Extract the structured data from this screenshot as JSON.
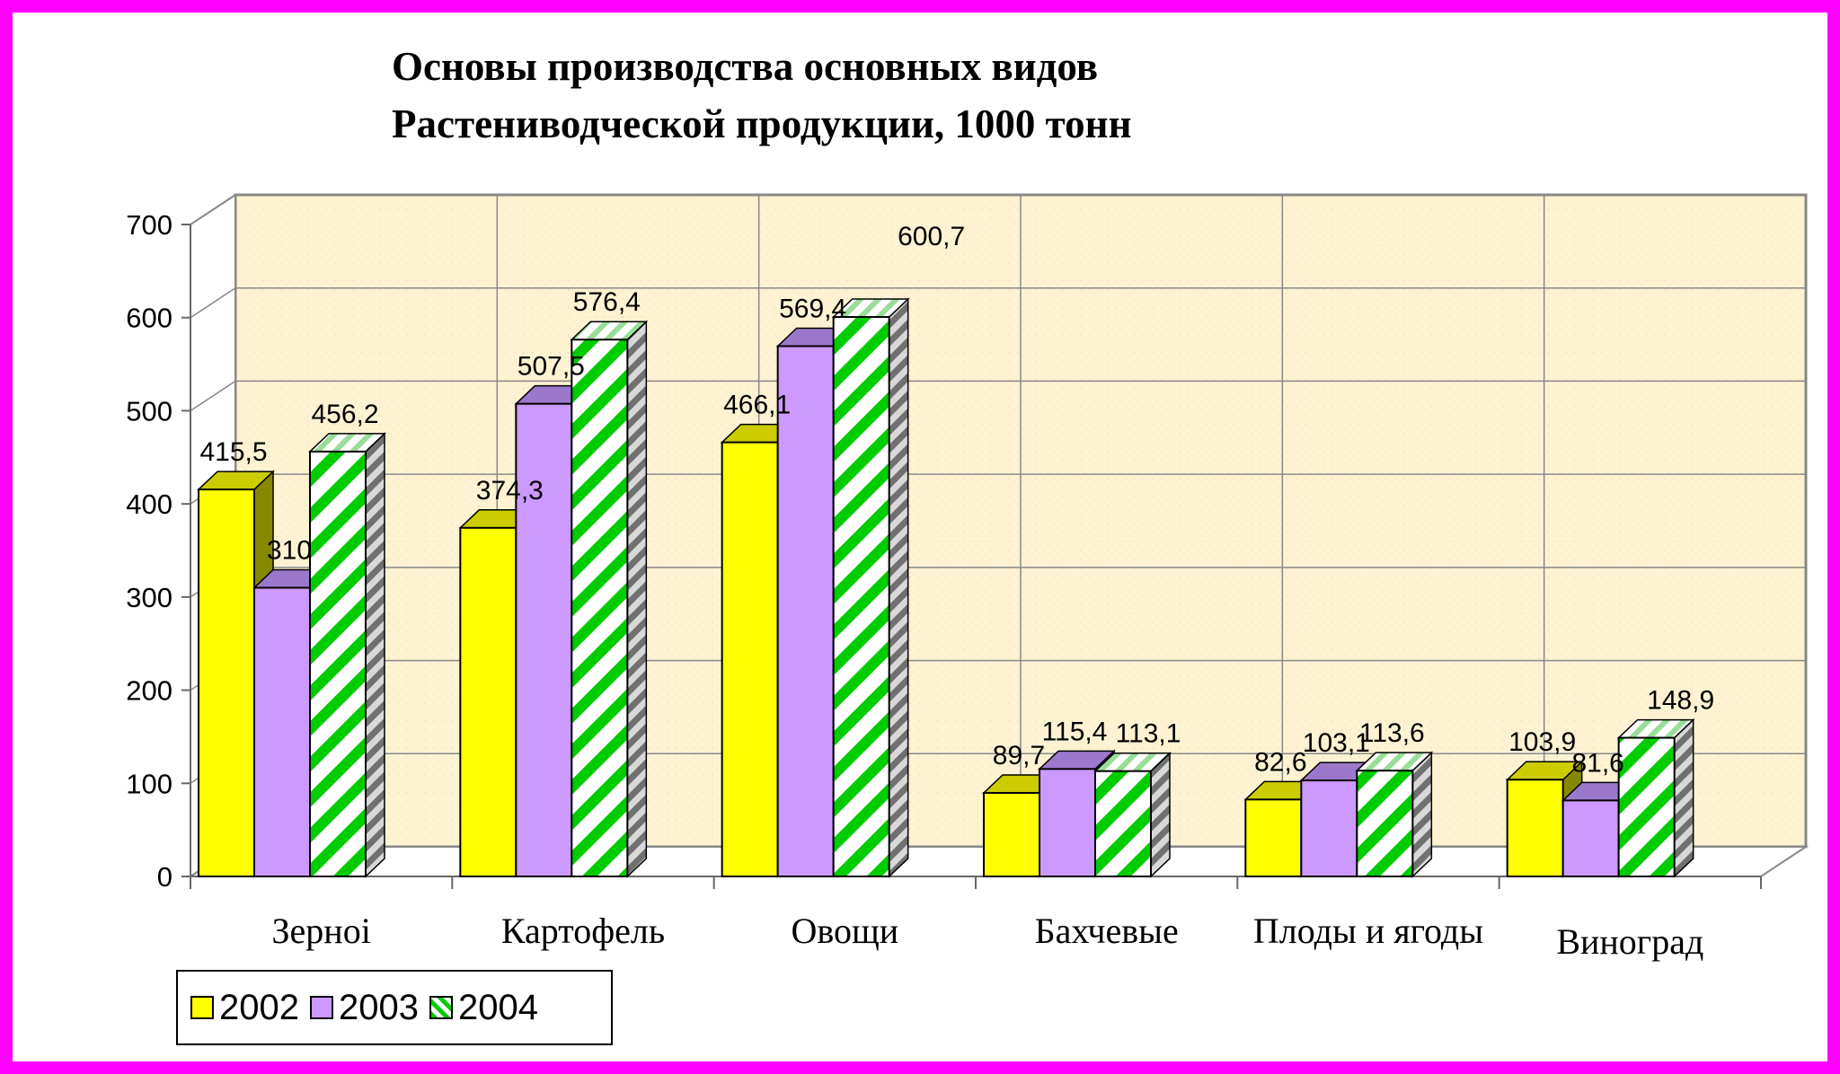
{
  "title": {
    "line1": "Основы производства  основных видов",
    "line2": "Растениводческой продукции, 1000 тонн"
  },
  "colors": {
    "border": "#ff00ff",
    "series_2002": "#ffff00",
    "series_2003": "#cc99ff",
    "series_2004_stripe": "#00cc00",
    "plot_background": "#fdf3d3"
  },
  "chart_data": {
    "type": "bar",
    "style": "3d-clustered",
    "categories": [
      "Зерноi",
      "Картофель",
      "Овощи",
      "Бахчевые",
      "Плоды и ягоды",
      "Виноград"
    ],
    "series": [
      {
        "name": "2002",
        "values": [
          415.5,
          374.3,
          466.1,
          89.7,
          82.6,
          103.9
        ],
        "labels": [
          "415,5",
          "374,3",
          "466,1",
          "89,7",
          "82,6",
          "103,9"
        ]
      },
      {
        "name": "2003",
        "values": [
          310,
          507.5,
          569.4,
          115.4,
          103.1,
          81.6
        ],
        "labels": [
          "310",
          "507,5",
          "569,4",
          "115,4",
          "103,1",
          "81,6"
        ]
      },
      {
        "name": "2004",
        "values": [
          456.2,
          576.4,
          600.7,
          113.1,
          113.6,
          148.9
        ],
        "labels": [
          "456,2",
          "576,4",
          "600,7",
          "113,1",
          "113,6",
          "148,9"
        ]
      }
    ],
    "yticks": [
      "0",
      "100",
      "200",
      "300",
      "400",
      "500",
      "600",
      "700"
    ],
    "ylim": [
      0,
      700
    ],
    "grid": true,
    "legend": "bottom-left"
  }
}
